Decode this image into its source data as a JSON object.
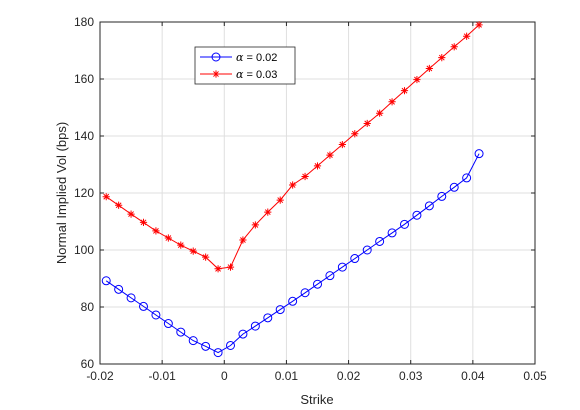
{
  "chart_data": {
    "type": "line",
    "title": "",
    "xlabel": "Strike",
    "ylabel": "Normal Implied Vol (bps)",
    "xlim": [
      -0.02,
      0.05
    ],
    "ylim": [
      60,
      180
    ],
    "xticks": [
      -0.02,
      -0.01,
      0,
      0.01,
      0.02,
      0.03,
      0.04,
      0.05
    ],
    "xtick_labels": [
      "-0.02",
      "-0.01",
      "0",
      "0.01",
      "0.02",
      "0.03",
      "0.04",
      "0.05"
    ],
    "yticks": [
      60,
      80,
      100,
      120,
      140,
      160,
      180
    ],
    "ytick_labels": [
      "60",
      "80",
      "100",
      "120",
      "140",
      "160",
      "180"
    ],
    "grid": true,
    "legend_position": "top-left",
    "series": [
      {
        "name": "α = 0.02",
        "legend_symbol": "α",
        "legend_rest": " = 0.02",
        "color": "#0000ff",
        "marker": "circle",
        "x": [
          -0.019,
          -0.017,
          -0.015,
          -0.013,
          -0.011,
          -0.009,
          -0.007,
          -0.005,
          -0.003,
          -0.001,
          0.001,
          0.003,
          0.005,
          0.007,
          0.009,
          0.011,
          0.013,
          0.015,
          0.017,
          0.019,
          0.021,
          0.023,
          0.025,
          0.027,
          0.029,
          0.031,
          0.033,
          0.035,
          0.037,
          0.039,
          0.041
        ],
        "values": [
          89.2,
          86.2,
          83.2,
          80.2,
          77.2,
          74.2,
          71.2,
          68.2,
          66.2,
          64.0,
          66.5,
          70.5,
          73.3,
          76.2,
          79.1,
          82.0,
          85.0,
          88.0,
          91.0,
          94.0,
          97.0,
          100.0,
          103.0,
          106.0,
          109.0,
          112.2,
          115.5,
          118.8,
          122.0,
          125.3,
          133.8
        ]
      },
      {
        "name": "α = 0.03",
        "legend_symbol": "α",
        "legend_rest": " = 0.03",
        "color": "#ff0000",
        "marker": "star",
        "x": [
          -0.019,
          -0.017,
          -0.015,
          -0.013,
          -0.011,
          -0.009,
          -0.007,
          -0.005,
          -0.003,
          -0.001,
          0.001,
          0.003,
          0.005,
          0.007,
          0.009,
          0.011,
          0.013,
          0.015,
          0.017,
          0.019,
          0.021,
          0.023,
          0.025,
          0.027,
          0.029,
          0.031,
          0.033,
          0.035,
          0.037,
          0.039,
          0.041
        ],
        "values": [
          118.7,
          115.7,
          112.6,
          109.7,
          106.7,
          104.2,
          101.7,
          99.6,
          97.5,
          93.4,
          94.0,
          103.5,
          108.8,
          113.3,
          117.5,
          122.8,
          125.8,
          129.5,
          133.3,
          137.0,
          140.8,
          144.4,
          148.0,
          152.0,
          155.9,
          159.8,
          163.7,
          167.5,
          171.3,
          175.0,
          179.0
        ]
      }
    ]
  }
}
